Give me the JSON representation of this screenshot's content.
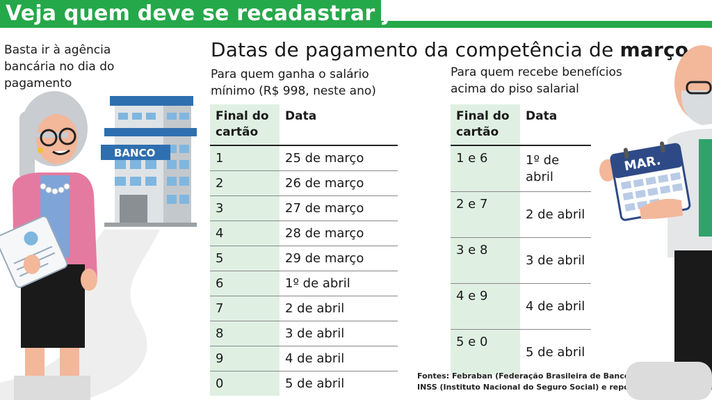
{
  "header": {
    "title": "Veja quem deve se recadastrar já"
  },
  "intro": {
    "text": "Basta ir à agência bancária no dia do pagamento"
  },
  "bank_sign": "BANCO",
  "calendar_label": "MAR.",
  "main": {
    "title_prefix": "Datas de pagamento da competência de ",
    "title_bold": "março"
  },
  "table1": {
    "subtitle": "Para quem ganha o salário mínimo (R$ 998, neste ano)",
    "headers": [
      "Final do cartão",
      "Data"
    ],
    "rows": [
      [
        "1",
        "25 de março"
      ],
      [
        "2",
        "26 de março"
      ],
      [
        "3",
        "27 de março"
      ],
      [
        "4",
        "28 de março"
      ],
      [
        "5",
        "29 de março"
      ],
      [
        "6",
        "1º de abril"
      ],
      [
        "7",
        "2 de abril"
      ],
      [
        "8",
        "3 de abril"
      ],
      [
        "9",
        "4 de abril"
      ],
      [
        "0",
        "5 de abril"
      ]
    ]
  },
  "table2": {
    "subtitle": "Para quem recebe benefícios acima do piso salarial",
    "headers": [
      "Final do cartão",
      "Data"
    ],
    "rows": [
      [
        "1 e 6",
        "1º de abril"
      ],
      [
        "2 e 7",
        "2 de abril"
      ],
      [
        "3 e 8",
        "3 de abril"
      ],
      [
        "4 e 9",
        "4 de abril"
      ],
      [
        "5 e 0",
        "5 de abril"
      ]
    ]
  },
  "sources": {
    "line1": "Fontes: Febraban (Federação Brasileira de Bancos),",
    "line2": "INSS (Instituto Nacional do Seguro Social) e reportagem"
  },
  "colors": {
    "brand_green": "#25a84a",
    "table_highlight": "#dff0e3",
    "bank_blue": "#2e6fb0"
  }
}
